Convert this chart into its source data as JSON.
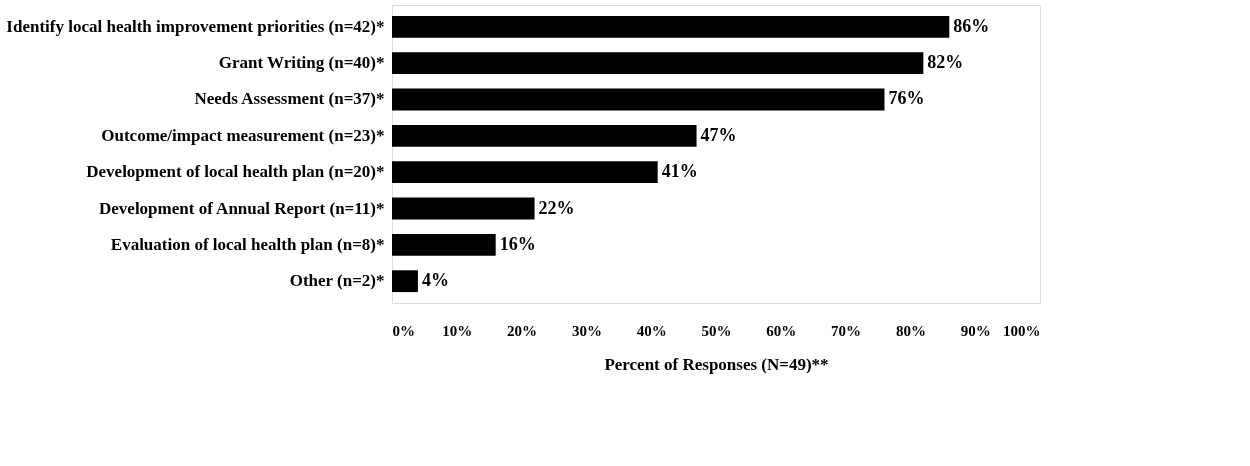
{
  "chart_data": {
    "type": "bar",
    "orientation": "horizontal",
    "xlabel": "Percent of Responses (N=49)**",
    "categories": [
      "Identify local health improvement priorities (n=42)*",
      "Grant Writing (n=40)*",
      "Needs Assessment (n=37)*",
      "Outcome/impact measurement (n=23)*",
      "Development of local health plan (n=20)*",
      "Development of Annual Report (n=11)*",
      "Evaluation of local health plan (n=8)*",
      "Other (n=2)*"
    ],
    "values": [
      86,
      82,
      76,
      47,
      41,
      22,
      16,
      4
    ],
    "value_labels": [
      "86%",
      "82%",
      "76%",
      "47%",
      "41%",
      "22%",
      "16%",
      "4%"
    ],
    "color": "#000000",
    "xlim": [
      0,
      100
    ],
    "xticks": [
      {
        "value": 0,
        "label": "0%"
      },
      {
        "value": 10,
        "label": "10%"
      },
      {
        "value": 20,
        "label": "20%"
      },
      {
        "value": 30,
        "label": "30%"
      },
      {
        "value": 40,
        "label": "40%"
      },
      {
        "value": 50,
        "label": "50%"
      },
      {
        "value": 60,
        "label": "60%"
      },
      {
        "value": 70,
        "label": "70%"
      },
      {
        "value": 80,
        "label": "80%"
      },
      {
        "value": 90,
        "label": "90%"
      },
      {
        "value": 100,
        "label": "100%"
      }
    ],
    "grid": false
  }
}
